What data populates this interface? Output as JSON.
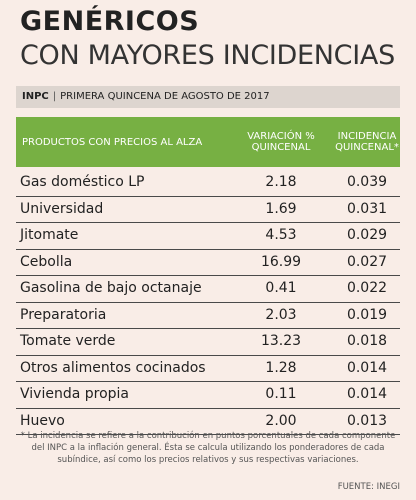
{
  "header": {
    "title": "GENÉRICOS",
    "subtitle": "CON MAYORES INCIDENCIAS",
    "tag": "INPC",
    "period": "PRIMERA QUINCENA DE AGOSTO DE 2017"
  },
  "table": {
    "columns": [
      "PRODUCTOS CON PRECIOS AL ALZA",
      "VARIACIÓN % QUINCENAL",
      "INCIDENCIA QUINCENAL*"
    ],
    "rows": [
      [
        "Gas doméstico LP",
        "2.18",
        "0.039"
      ],
      [
        "Universidad",
        "1.69",
        "0.031"
      ],
      [
        "Jitomate",
        "4.53",
        "0.029"
      ],
      [
        "Cebolla",
        "16.99",
        "0.027"
      ],
      [
        "Gasolina de bajo octanaje",
        "0.41",
        "0.022"
      ],
      [
        "Preparatoria",
        "2.03",
        "0.019"
      ],
      [
        "Tomate verde",
        "13.23",
        "0.018"
      ],
      [
        "Otros alimentos cocinados",
        "1.28",
        "0.014"
      ],
      [
        "Vivienda propia",
        "0.11",
        "0.014"
      ],
      [
        "Huevo",
        "2.00",
        "0.013"
      ]
    ]
  },
  "footnote": "* La incidencia se refiere a la contribución en puntos porcentuales de cada componente del INPC a la inflación general. Ésta se calcula utilizando los ponderadores de cada subíndice, así como los precios relativos y sus respectivas variaciones.",
  "source": "FUENTE: INEGI"
}
